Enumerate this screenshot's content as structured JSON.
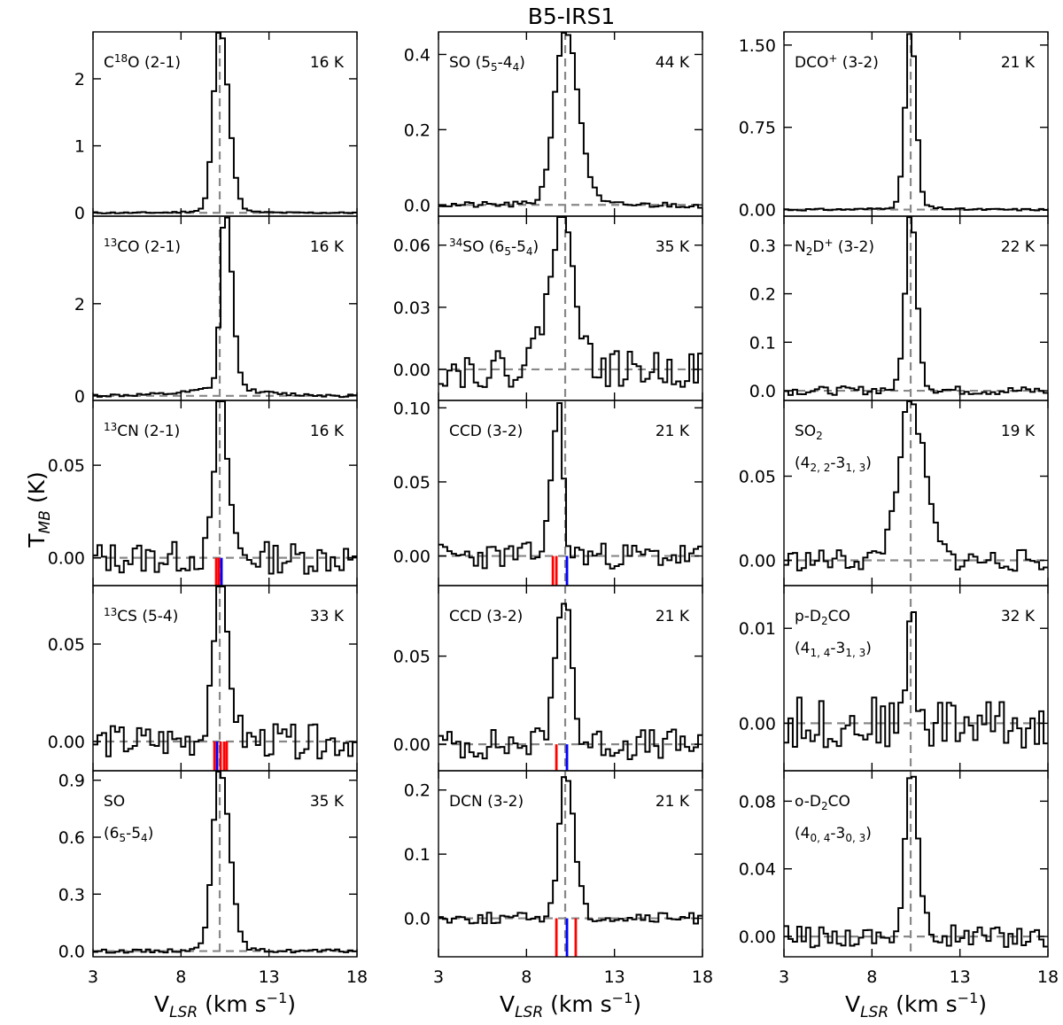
{
  "figure": {
    "title": "B5-IRS1",
    "ylabel_main": "T",
    "ylabel_sub": "MB",
    "ylabel_unit": " (K)",
    "xlabel_main": "V",
    "xlabel_sub": "LSR",
    "xlabel_unit": " (km s",
    "xlabel_exp": "−1",
    "xlabel_close": ")"
  },
  "chart_data": {
    "type": "line",
    "title": "B5-IRS1",
    "xlabel": "VLSR (km s−1)",
    "ylabel": "TMB (K)",
    "xlim": [
      3,
      18
    ],
    "xticks": [
      3,
      8,
      13,
      18
    ],
    "xtick_labels": [
      "3",
      "8",
      "13",
      "18"
    ],
    "vsys": 10.2,
    "channel_width": 0.25,
    "grid": false,
    "columns": [
      {
        "panels": [
          {
            "id": "c18o",
            "label": [
              [
                "C",
                "n"
              ],
              [
                "18",
                "sup"
              ],
              [
                "O (2-1)",
                "n"
              ]
            ],
            "energy": "16 K",
            "ylim": [
              -0.05,
              2.7
            ],
            "yticks": [
              0,
              1,
              2
            ],
            "ytick_labels": [
              "0",
              "1",
              "2"
            ],
            "peak": 2.65,
            "sigma_l": 0.35,
            "sigma_r": 0.5,
            "wing": 0.0,
            "noise": 0.01,
            "seed": 11,
            "markers": []
          },
          {
            "id": "13co",
            "label": [
              [
                "13",
                "sup"
              ],
              [
                "CO (2-1)",
                "n"
              ]
            ],
            "energy": "16 K",
            "ylim": [
              -0.1,
              3.9
            ],
            "yticks": [
              0,
              2
            ],
            "ytick_labels": [
              "0",
              "2"
            ],
            "peak": 3.75,
            "sigma_l": 0.25,
            "sigma_r": 0.4,
            "center": 10.5,
            "wing": 0.15,
            "noise": 0.03,
            "seed": 12,
            "markers": []
          },
          {
            "id": "13cn",
            "label": [
              [
                "13",
                "sup"
              ],
              [
                "CN (2-1)",
                "n"
              ]
            ],
            "energy": "16 K",
            "ylim": [
              -0.015,
              0.085
            ],
            "yticks": [
              0,
              0.05
            ],
            "ytick_labels": [
              "0.00",
              "0.05"
            ],
            "peak": 0.082,
            "sigma_l": 0.3,
            "sigma_r": 0.45,
            "wing": 0.0,
            "noise": 0.008,
            "seed": 13,
            "markers": [
              {
                "v": 10.0,
                "color": "#ff0000"
              },
              {
                "v": 10.15,
                "color": "#ff0000"
              },
              {
                "v": 10.3,
                "color": "#0000ff"
              }
            ]
          },
          {
            "id": "13cs",
            "label": [
              [
                "13",
                "sup"
              ],
              [
                "CS (5-4)",
                "n"
              ]
            ],
            "energy": "33 K",
            "ylim": [
              -0.015,
              0.08
            ],
            "yticks": [
              0,
              0.05
            ],
            "ytick_labels": [
              "0.00",
              "0.05"
            ],
            "peak": 0.075,
            "sigma_l": 0.4,
            "sigma_r": 0.5,
            "wing": 0.0,
            "noise": 0.008,
            "seed": 14,
            "markers": [
              {
                "v": 9.9,
                "color": "#ff0000"
              },
              {
                "v": 10.05,
                "color": "#0000ff"
              },
              {
                "v": 10.25,
                "color": "#ff0000"
              },
              {
                "v": 10.45,
                "color": "#ff0000"
              },
              {
                "v": 10.6,
                "color": "#ff0000"
              }
            ]
          },
          {
            "id": "so_a",
            "label": [
              [
                "SO",
                "n"
              ]
            ],
            "label2": [
              [
                "(6",
                "n"
              ],
              [
                "5",
                "sub"
              ],
              [
                "-5",
                "n"
              ],
              [
                "4",
                "sub"
              ],
              [
                ")",
                "n"
              ]
            ],
            "energy": "35 K",
            "ylim": [
              -0.03,
              0.95
            ],
            "yticks": [
              0,
              0.3,
              0.6,
              0.9
            ],
            "ytick_labels": [
              "0.0",
              "0.3",
              "0.6",
              "0.9"
            ],
            "peak": 0.93,
            "sigma_l": 0.4,
            "sigma_r": 0.55,
            "wing": 0.0,
            "noise": 0.008,
            "seed": 15,
            "markers": []
          }
        ]
      },
      {
        "panels": [
          {
            "id": "so_b",
            "label": [
              [
                "SO (5",
                "n"
              ],
              [
                "5",
                "sub"
              ],
              [
                "-4",
                "n"
              ],
              [
                "4",
                "sub"
              ],
              [
                ")",
                "n"
              ]
            ],
            "energy": "44 K",
            "ylim": [
              -0.03,
              0.46
            ],
            "yticks": [
              0,
              0.2,
              0.4
            ],
            "ytick_labels": [
              "0.0",
              "0.2",
              "0.4"
            ],
            "peak": 0.45,
            "sigma_l": 0.6,
            "sigma_r": 0.75,
            "wing": 0.0,
            "noise": 0.007,
            "seed": 21,
            "markers": []
          },
          {
            "id": "34so",
            "label": [
              [
                "34",
                "sup"
              ],
              [
                "SO (6",
                "n"
              ],
              [
                "5",
                "sub"
              ],
              [
                "-5",
                "n"
              ],
              [
                "4",
                "sub"
              ],
              [
                ")",
                "n"
              ]
            ],
            "energy": "35 K",
            "ylim": [
              -0.015,
              0.074
            ],
            "yticks": [
              0,
              0.03,
              0.06
            ],
            "ytick_labels": [
              "0.00",
              "0.03",
              "0.06"
            ],
            "peak": 0.07,
            "sigma_l": 0.9,
            "sigma_r": 0.6,
            "wing": 0.0,
            "noise": 0.008,
            "seed": 22,
            "markers": []
          },
          {
            "id": "ccd_a",
            "label": [
              [
                "CCD (3-2)",
                "n"
              ]
            ],
            "energy": "21 K",
            "ylim": [
              -0.02,
              0.105
            ],
            "yticks": [
              0,
              0.05,
              0.1
            ],
            "ytick_labels": [
              "0.00",
              "0.05",
              "0.10"
            ],
            "peak": 0.1,
            "sigma_l": 0.35,
            "sigma_r": 0.25,
            "center": 9.8,
            "wing": 0.0,
            "noise": 0.008,
            "seed": 23,
            "markers": [
              {
                "v": 9.5,
                "color": "#ff0000"
              },
              {
                "v": 9.7,
                "color": "#ff0000"
              },
              {
                "v": 10.3,
                "color": "#0000ff"
              }
            ]
          },
          {
            "id": "ccd_b",
            "label": [
              [
                "CCD (3-2)",
                "n"
              ]
            ],
            "energy": "21 K",
            "ylim": [
              -0.015,
              0.09
            ],
            "yticks": [
              0,
              0.05
            ],
            "ytick_labels": [
              "0.00",
              "0.05"
            ],
            "peak": 0.085,
            "sigma_l": 0.5,
            "sigma_r": 0.35,
            "wing": 0.0,
            "noise": 0.008,
            "seed": 24,
            "markers": [
              {
                "v": 9.7,
                "color": "#ff0000"
              },
              {
                "v": 10.3,
                "color": "#0000ff"
              }
            ]
          },
          {
            "id": "dcn",
            "label": [
              [
                "DCN (3-2)",
                "n"
              ]
            ],
            "energy": "21 K",
            "ylim": [
              -0.06,
              0.23
            ],
            "yticks": [
              0,
              0.1,
              0.2
            ],
            "ytick_labels": [
              "0.0",
              "0.1",
              "0.2"
            ],
            "peak": 0.22,
            "sigma_l": 0.35,
            "sigma_r": 0.5,
            "wing": 0.0,
            "noise": 0.008,
            "seed": 25,
            "markers": [
              {
                "v": 9.7,
                "color": "#ff0000"
              },
              {
                "v": 10.3,
                "color": "#0000ff"
              },
              {
                "v": 10.8,
                "color": "#ff0000"
              }
            ]
          }
        ]
      },
      {
        "panels": [
          {
            "id": "dco",
            "label": [
              [
                "DCO",
                "n"
              ],
              [
                "+",
                "sup"
              ],
              [
                " (3-2)",
                "n"
              ]
            ],
            "energy": "21 K",
            "ylim": [
              -0.06,
              1.62
            ],
            "yticks": [
              0,
              0.75,
              1.5
            ],
            "ytick_labels": [
              "0.00",
              "0.75",
              "1.50"
            ],
            "peak": 1.58,
            "sigma_l": 0.3,
            "sigma_r": 0.3,
            "wing": 0.0,
            "noise": 0.008,
            "seed": 31,
            "markers": []
          },
          {
            "id": "n2d",
            "label": [
              [
                "N",
                "n"
              ],
              [
                "2",
                "sub"
              ],
              [
                "D",
                "n"
              ],
              [
                "+",
                "sup"
              ],
              [
                " (3-2)",
                "n"
              ]
            ],
            "energy": "22 K",
            "ylim": [
              -0.02,
              0.36
            ],
            "yticks": [
              0,
              0.1,
              0.2,
              0.3
            ],
            "ytick_labels": [
              "0.0",
              "0.1",
              "0.2",
              "0.3"
            ],
            "peak": 0.35,
            "sigma_l": 0.3,
            "sigma_r": 0.35,
            "wing": 0.0,
            "noise": 0.008,
            "seed": 32,
            "markers": []
          },
          {
            "id": "so2",
            "label": [
              [
                "SO",
                "n"
              ],
              [
                "2",
                "sub"
              ]
            ],
            "label2": [
              [
                "(4",
                "n"
              ],
              [
                "2, 2",
                "sub"
              ],
              [
                "-3",
                "n"
              ],
              [
                "1, 3",
                "sub"
              ],
              [
                ")",
                "n"
              ]
            ],
            "energy": "19 K",
            "ylim": [
              -0.015,
              0.095
            ],
            "yticks": [
              0,
              0.05
            ],
            "ytick_labels": [
              "0.00",
              "0.05"
            ],
            "peak": 0.088,
            "sigma_l": 0.7,
            "sigma_r": 0.8,
            "wing": 0.0,
            "noise": 0.006,
            "seed": 33,
            "markers": []
          },
          {
            "id": "pd2co",
            "label": [
              [
                "p-D",
                "n"
              ],
              [
                "2",
                "sub"
              ],
              [
                "CO",
                "n"
              ]
            ],
            "label2": [
              [
                "(4",
                "n"
              ],
              [
                "1, 4",
                "sub"
              ],
              [
                "-3",
                "n"
              ],
              [
                "1, 3",
                "sub"
              ],
              [
                ")",
                "n"
              ]
            ],
            "energy": "32 K",
            "ylim": [
              -0.005,
              0.0145
            ],
            "yticks": [
              0,
              0.01
            ],
            "ytick_labels": [
              "0.00",
              "0.01"
            ],
            "peak": 0.014,
            "sigma_l": 0.15,
            "sigma_r": 0.2,
            "wing": 0.0,
            "noise": 0.0025,
            "seed": 34,
            "markers": []
          },
          {
            "id": "od2co",
            "label": [
              [
                "o-D",
                "n"
              ],
              [
                "2",
                "sub"
              ],
              [
                "CO",
                "n"
              ]
            ],
            "label2": [
              [
                "(4",
                "n"
              ],
              [
                "0, 4",
                "sub"
              ],
              [
                "-3",
                "n"
              ],
              [
                "0, 3",
                "sub"
              ],
              [
                ")",
                "n"
              ]
            ],
            "energy": "",
            "ylim": [
              -0.012,
              0.098
            ],
            "yticks": [
              0,
              0.04,
              0.08
            ],
            "ytick_labels": [
              "0.00",
              "0.04",
              "0.08"
            ],
            "peak": 0.095,
            "sigma_l": 0.3,
            "sigma_r": 0.4,
            "wing": 0.0,
            "noise": 0.006,
            "seed": 35,
            "markers": []
          }
        ]
      }
    ]
  }
}
